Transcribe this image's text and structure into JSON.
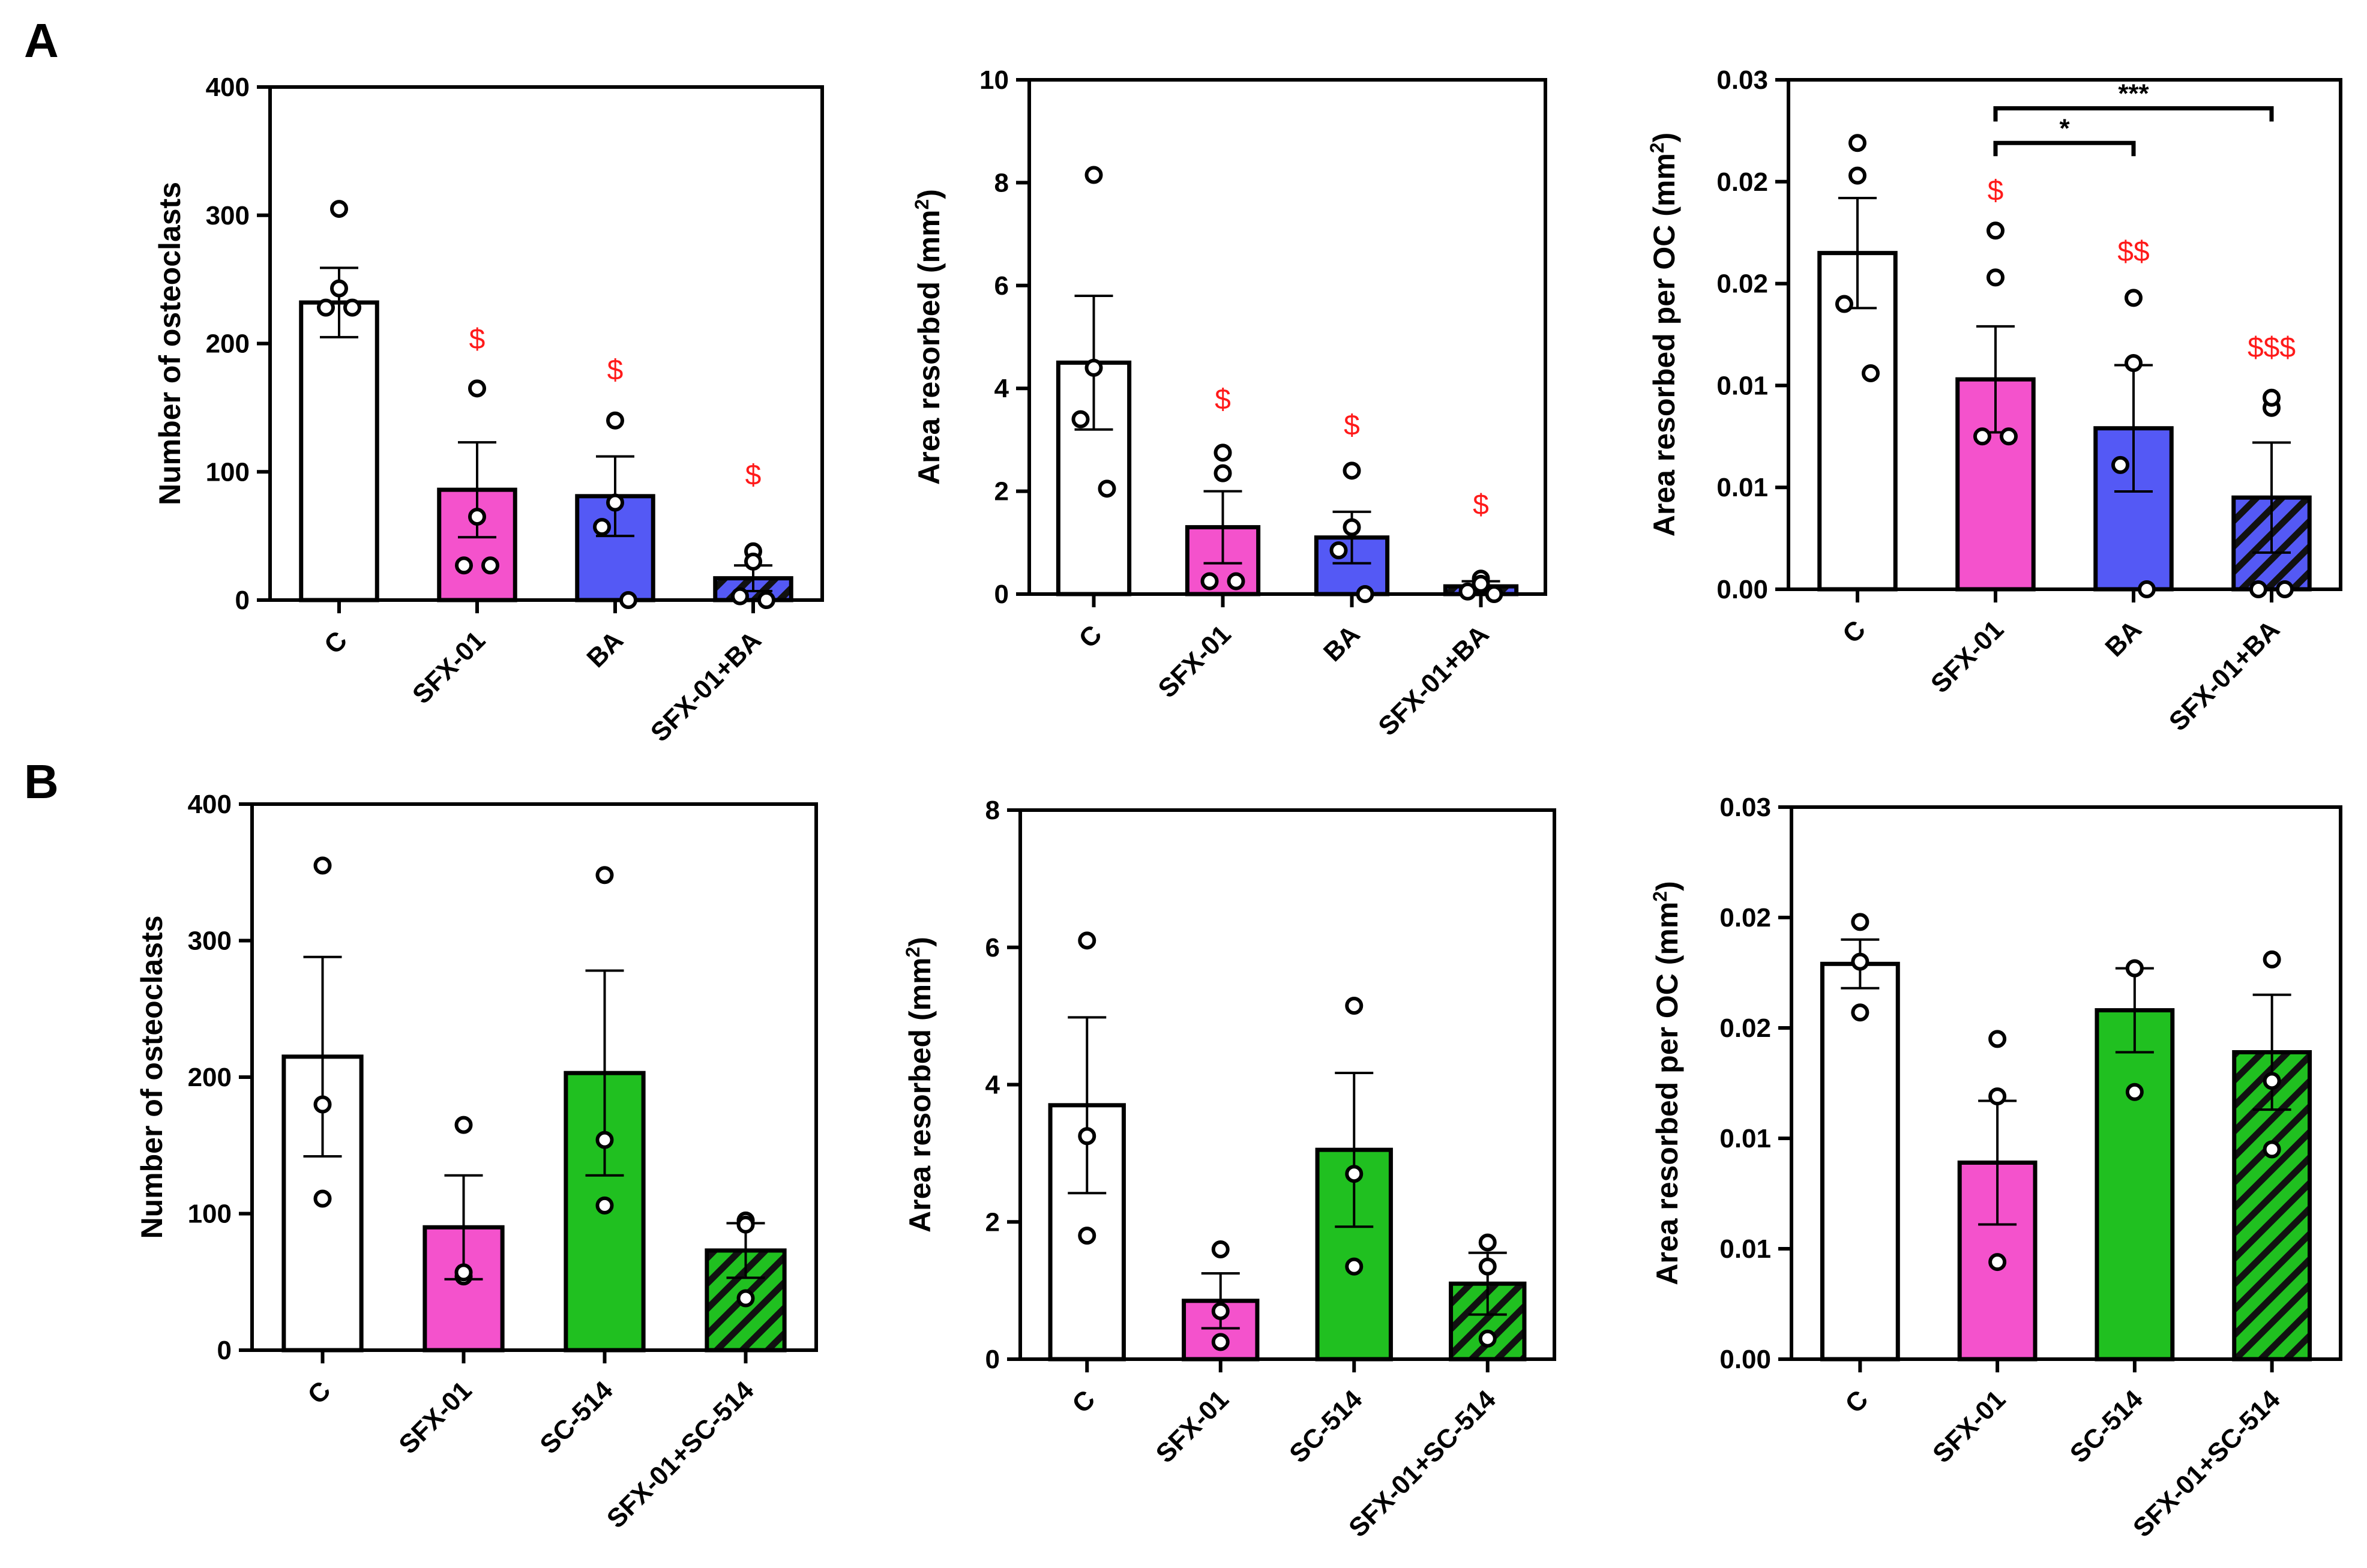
{
  "colors": {
    "control": "#ffffff",
    "sfx01": "#f452cc",
    "ba": "#5459f5",
    "sc514": "#20c020",
    "stroke": "#000000",
    "significance": "#ff1a1a"
  },
  "panels": [
    {
      "label": "A"
    },
    {
      "label": "B"
    }
  ],
  "chart_data": [
    {
      "type": "bar",
      "panel": "A",
      "ylabel": "Number of osteoclasts",
      "ylim": [
        0,
        400
      ],
      "yticks": [
        "0",
        "100",
        "200",
        "300",
        "400"
      ],
      "categories": [
        "C",
        "SFX-01",
        "BA",
        "SFX-01+BA"
      ],
      "fills": [
        "control",
        "sfx01",
        "ba",
        "ba"
      ],
      "hatched": [
        false,
        false,
        false,
        true
      ],
      "values": [
        232,
        86,
        81,
        17
      ],
      "sem": [
        27,
        37,
        31,
        10
      ],
      "points": [
        [
          305,
          243,
          228,
          228
        ],
        [
          165,
          65,
          27,
          27
        ],
        [
          140,
          76,
          57,
          0
        ],
        [
          38,
          30,
          3,
          0
        ]
      ],
      "annotations": [
        "",
        "$",
        "$",
        "$"
      ],
      "annotation_values": [
        0,
        196,
        172,
        90
      ],
      "brackets": []
    },
    {
      "type": "bar",
      "panel": "A",
      "ylabel": "Area resorbed (mm",
      "ylabel_sup": "2",
      "ylabel_end": ")",
      "ylim": [
        0,
        10
      ],
      "yticks": [
        "0",
        "2",
        "4",
        "6",
        "8",
        "10"
      ],
      "categories": [
        "C",
        "SFX-01",
        "BA",
        "SFX-01+BA"
      ],
      "fills": [
        "control",
        "sfx01",
        "ba",
        "ba"
      ],
      "hatched": [
        false,
        false,
        false,
        true
      ],
      "values": [
        4.5,
        1.3,
        1.1,
        0.15
      ],
      "sem": [
        1.3,
        0.7,
        0.5,
        0.1
      ],
      "points": [
        [
          8.15,
          4.4,
          3.4,
          2.05
        ],
        [
          2.75,
          2.35,
          0.25,
          0.25
        ],
        [
          2.4,
          1.3,
          0.85,
          0.0
        ],
        [
          0.3,
          0.2,
          0.05,
          0.0
        ]
      ],
      "annotations": [
        "",
        "$",
        "$",
        "$"
      ],
      "annotation_values": [
        0,
        3.6,
        3.1,
        1.55
      ],
      "brackets": []
    },
    {
      "type": "bar",
      "panel": "A",
      "ylabel": "Area resorbed per OC (mm",
      "ylabel_sup": "2",
      "ylabel_end": ")",
      "ylim": [
        0,
        0.025
      ],
      "yticks": [
        "0.00",
        "0.01",
        "0.01",
        "0.02",
        "0.02",
        "0.03"
      ],
      "categories": [
        "C",
        "SFX-01",
        "BA",
        "SFX-01+BA"
      ],
      "fills": [
        "control",
        "sfx01",
        "ba",
        "ba"
      ],
      "hatched": [
        false,
        false,
        false,
        true
      ],
      "values": [
        0.0165,
        0.0103,
        0.0079,
        0.0045
      ],
      "sem": [
        0.0027,
        0.0026,
        0.0031,
        0.0027
      ],
      "points": [
        [
          0.0219,
          0.0203,
          0.014,
          0.0106
        ],
        [
          0.0176,
          0.0153,
          0.0075,
          0.0075
        ],
        [
          0.0143,
          0.0111,
          0.0061,
          0.0
        ],
        [
          0.0089,
          0.0094,
          0.0,
          0.0
        ]
      ],
      "annotations": [
        "",
        "$",
        "$$",
        "$$$"
      ],
      "annotation_values": [
        0,
        0.0191,
        0.0161,
        0.0114
      ],
      "brackets": [
        {
          "from": 1,
          "to": 2,
          "label": "*",
          "value": 0.0219
        },
        {
          "from": 1,
          "to": 3,
          "label": "***",
          "value": 0.0236
        }
      ]
    },
    {
      "type": "bar",
      "panel": "B",
      "ylabel": "Number of osteoclasts",
      "ylim": [
        0,
        400
      ],
      "yticks": [
        "0",
        "100",
        "200",
        "300",
        "400"
      ],
      "categories": [
        "C",
        "SFX-01",
        "SC-514",
        "SFX-01+SC-514"
      ],
      "fills": [
        "control",
        "sfx01",
        "sc514",
        "sc514"
      ],
      "hatched": [
        false,
        false,
        false,
        true
      ],
      "values": [
        215,
        90,
        203,
        73
      ],
      "sem": [
        73,
        38,
        75,
        20
      ],
      "points": [
        [
          355,
          180,
          111
        ],
        [
          165,
          54,
          57
        ],
        [
          348,
          154,
          106
        ],
        [
          95,
          92,
          38
        ]
      ],
      "annotations": [
        "",
        "",
        "",
        ""
      ],
      "annotation_values": [
        0,
        0,
        0,
        0
      ],
      "brackets": []
    },
    {
      "type": "bar",
      "panel": "B",
      "ylabel": "Area resorbed (mm",
      "ylabel_sup": "2",
      "ylabel_end": ")",
      "ylim": [
        0,
        8
      ],
      "yticks": [
        "0",
        "2",
        "4",
        "6",
        "8"
      ],
      "categories": [
        "C",
        "SFX-01",
        "SC-514",
        "SFX-01+SC-514"
      ],
      "fills": [
        "control",
        "sfx01",
        "sc514",
        "sc514"
      ],
      "hatched": [
        false,
        false,
        false,
        true
      ],
      "values": [
        3.7,
        0.85,
        3.05,
        1.1
      ],
      "sem": [
        1.28,
        0.4,
        1.12,
        0.45
      ],
      "points": [
        [
          6.1,
          3.25,
          1.8
        ],
        [
          1.6,
          0.7,
          0.25
        ],
        [
          5.15,
          2.7,
          1.35
        ],
        [
          1.7,
          1.35,
          0.3
        ]
      ],
      "annotations": [
        "",
        "",
        "",
        ""
      ],
      "annotation_values": [
        0,
        0,
        0,
        0
      ],
      "brackets": []
    },
    {
      "type": "bar",
      "panel": "B",
      "ylabel": "Area resorbed per OC (mm",
      "ylabel_sup": "2",
      "ylabel_end": ")",
      "ylim": [
        0,
        0.025
      ],
      "yticks": [
        "0.00",
        "0.01",
        "0.01",
        "0.02",
        "0.02",
        "0.03"
      ],
      "categories": [
        "C",
        "SFX-01",
        "SC-514",
        "SFX-01+SC-514"
      ],
      "fills": [
        "control",
        "sfx01",
        "sc514",
        "sc514"
      ],
      "hatched": [
        false,
        false,
        false,
        true
      ],
      "values": [
        0.0179,
        0.0089,
        0.0158,
        0.0139
      ],
      "sem": [
        0.0011,
        0.0028,
        0.0019,
        0.0026
      ],
      "points": [
        [
          0.0198,
          0.018,
          0.0157
        ],
        [
          0.0145,
          0.0119,
          0.0044
        ],
        [
          0.0177,
          0.0177,
          0.0121
        ],
        [
          0.0181,
          0.0126,
          0.0095
        ]
      ],
      "annotations": [
        "",
        "",
        "",
        ""
      ],
      "annotation_values": [
        0,
        0,
        0,
        0
      ],
      "brackets": []
    }
  ]
}
